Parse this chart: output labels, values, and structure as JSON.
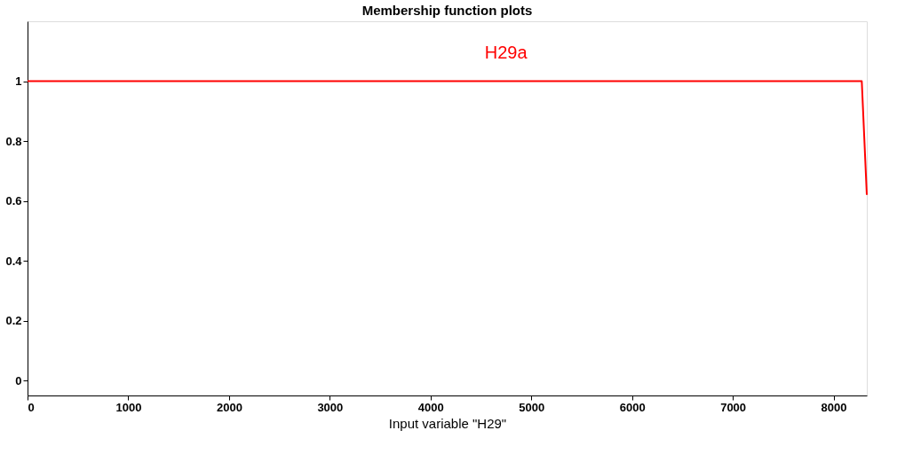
{
  "chart_data": {
    "type": "line",
    "title": "Membership function plots",
    "xlabel": "Input variable \"H29\"",
    "x": [
      0,
      8280,
      8330
    ],
    "series": [
      {
        "name": "H29a",
        "color": "#ff0000",
        "values": [
          1,
          1,
          0.62
        ]
      }
    ],
    "xlim": [
      0,
      8330
    ],
    "xticks": [
      0,
      1000,
      2000,
      3000,
      4000,
      5000,
      6000,
      7000,
      8000
    ],
    "ylim": [
      -0.05,
      1.2
    ],
    "yticks": [
      0,
      0.2,
      0.4,
      0.6,
      0.8,
      1
    ],
    "grid": false,
    "legend": false,
    "marker": "none",
    "line_style": "solid"
  }
}
